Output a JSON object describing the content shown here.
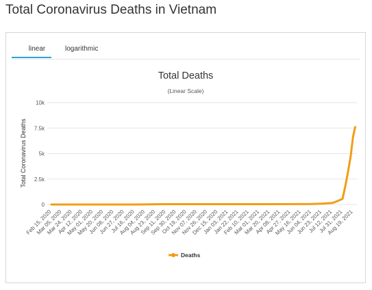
{
  "page": {
    "title": "Total Coronavirus Deaths in Vietnam"
  },
  "tabs": [
    {
      "label": "linear",
      "active": true
    },
    {
      "label": "logarithmic",
      "active": false
    }
  ],
  "colors": {
    "series": "#f39c12",
    "tab_active": "#2aa3dc",
    "grid": "#e6e6e6"
  },
  "chart_data": {
    "type": "line",
    "title": "Total Deaths",
    "subtitle": "(Linear Scale)",
    "ylabel": "Total Coronavirus Deaths",
    "xlabel": "",
    "ylim": [
      0,
      10000
    ],
    "grid": true,
    "legend_position": "bottom-center",
    "y_ticks": [
      "0",
      "2.5k",
      "5k",
      "7.5k",
      "10k"
    ],
    "y_tick_values": [
      0,
      2500,
      5000,
      7500,
      10000
    ],
    "x_tick_labels": [
      "Feb 15, 2020",
      "Mar 05, 2020",
      "Mar 24, 2020",
      "Apr 12, 2020",
      "May 01, 2020",
      "May 20, 2020",
      "Jun 08, 2020",
      "Jun 27, 2020",
      "Jul 16, 2020",
      "Aug 04, 2020",
      "Aug 23, 2020",
      "Sep 11, 2020",
      "Sep 30, 2020",
      "Oct 19, 2020",
      "Nov 07, 2020",
      "Nov 26, 2020",
      "Dec 15, 2020",
      "Jan 03, 2021",
      "Jan 22, 2021",
      "Feb 10, 2021",
      "Mar 01, 2021",
      "Mar 20, 2021",
      "Apr 08, 2021",
      "Apr 27, 2021",
      "May 16, 2021",
      "Jun 04, 2021",
      "Jun 23, 2021",
      "Jul 12, 2021",
      "Jul 31, 2021",
      "Aug 19, 2021"
    ],
    "series": [
      {
        "name": "Deaths",
        "x": [
          "Feb 15, 2020",
          "Jul 16, 2020",
          "Aug 04, 2020",
          "Aug 23, 2020",
          "Sep 11, 2020",
          "Dec 15, 2020",
          "Mar 01, 2021",
          "May 16, 2021",
          "Jun 04, 2021",
          "Jun 23, 2021",
          "Jul 12, 2021",
          "Jul 20, 2021",
          "Jul 31, 2021",
          "Aug 05, 2021",
          "Aug 10, 2021",
          "Aug 15, 2021",
          "Aug 19, 2021",
          "Aug 23, 2021"
        ],
        "values": [
          0,
          0,
          10,
          30,
          35,
          35,
          35,
          37,
          50,
          80,
          150,
          300,
          550,
          1800,
          3200,
          4800,
          6600,
          7600
        ]
      }
    ]
  }
}
